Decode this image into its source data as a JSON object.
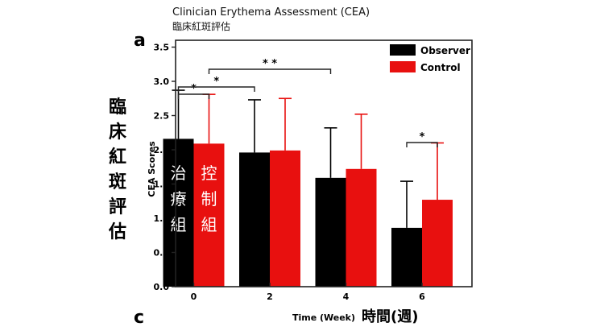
{
  "header": {
    "title_en": "Clinician Erythema Assessment (CEA)",
    "title_zh": "臨床紅斑評估"
  },
  "panel_labels": {
    "top": "a",
    "bottom": "c"
  },
  "side_labels": {
    "left_zh": "臨床紅斑評估",
    "xlabel_zh": "時間(週)",
    "observer_bar_zh": "治療組",
    "control_bar_zh": "控制組"
  },
  "chart_data": {
    "type": "bar",
    "categories": [
      "0",
      "2",
      "4",
      "6"
    ],
    "xlabel": "Time (Week)",
    "ylabel": "CEA Scores",
    "ylim": [
      0,
      3.6
    ],
    "yticks": [
      "0.0",
      "0.5",
      "1.0",
      "1.5",
      "2.0",
      "2.5",
      "3.0",
      "3.5"
    ],
    "grid": false,
    "legend_position": "top-right",
    "series": [
      {
        "name": "Observer",
        "color": "#000000",
        "values": [
          2.16,
          1.96,
          1.59,
          0.86
        ],
        "errors": [
          0.71,
          0.77,
          0.73,
          0.68
        ]
      },
      {
        "name": "Control",
        "color": "#e8100f",
        "values": [
          2.09,
          1.99,
          1.72,
          1.27
        ],
        "errors": [
          0.72,
          0.76,
          0.8,
          0.83
        ]
      }
    ],
    "significance": [
      {
        "label": "*",
        "from": [
          0,
          "Observer"
        ],
        "to": [
          0,
          "Control"
        ]
      },
      {
        "label": "*",
        "from": [
          0,
          "Observer"
        ],
        "to": [
          1,
          "Observer"
        ]
      },
      {
        "label": "* *",
        "from": [
          0,
          "Control"
        ],
        "to": [
          2,
          "Observer"
        ]
      },
      {
        "label": "*",
        "from": [
          3,
          "Observer"
        ],
        "to": [
          3,
          "Control"
        ]
      }
    ]
  },
  "colors": {
    "observer": "#000000",
    "control": "#e8100f",
    "axis": "#222222"
  }
}
